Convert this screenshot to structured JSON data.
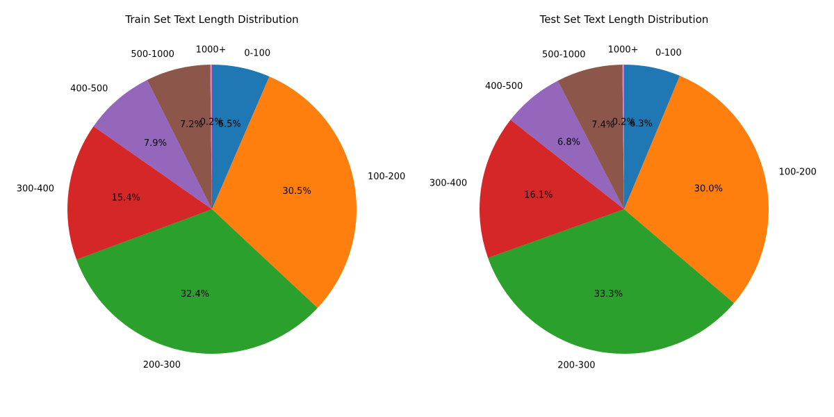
{
  "chart_data": [
    {
      "type": "pie",
      "title": "Train Set Text Length Distribution",
      "categories": [
        "0-100",
        "100-200",
        "200-300",
        "300-400",
        "400-500",
        "500-1000",
        "1000+"
      ],
      "values": [
        6.5,
        30.5,
        32.4,
        15.4,
        7.9,
        7.2,
        0.2
      ],
      "value_labels": [
        "6.5%",
        "30.5%",
        "32.4%",
        "15.4%",
        "7.9%",
        "7.2%",
        "0.2%"
      ],
      "colors": [
        "#1f77b4",
        "#ff7f0e",
        "#2ca02c",
        "#d62728",
        "#9467bd",
        "#8c564b",
        "#e377c2"
      ],
      "start_angle_deg": 90,
      "direction": "clockwise"
    },
    {
      "type": "pie",
      "title": "Test Set Text Length Distribution",
      "categories": [
        "0-100",
        "100-200",
        "200-300",
        "300-400",
        "400-500",
        "500-1000",
        "1000+"
      ],
      "values": [
        6.3,
        30.0,
        33.3,
        16.1,
        6.8,
        7.4,
        0.2
      ],
      "value_labels": [
        "6.3%",
        "30.0%",
        "33.3%",
        "16.1%",
        "6.8%",
        "7.4%",
        "0.2%"
      ],
      "colors": [
        "#1f77b4",
        "#ff7f0e",
        "#2ca02c",
        "#d62728",
        "#9467bd",
        "#8c564b",
        "#e377c2"
      ],
      "start_angle_deg": 90,
      "direction": "clockwise"
    }
  ]
}
